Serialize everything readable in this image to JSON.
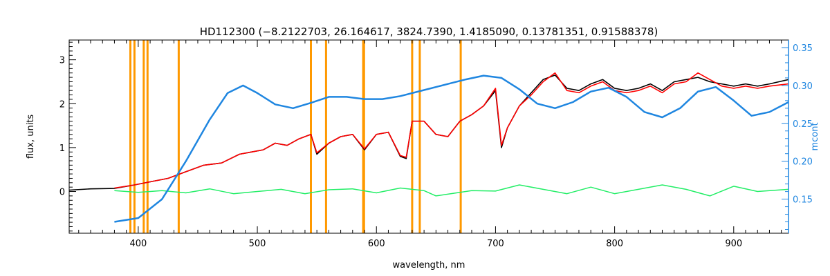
{
  "chart_data": {
    "type": "line",
    "title": "HD112300    (−8.2122703, 26.164617, 3824.7390, 1.4185090, 0.13781351, 0.91588378)",
    "xlabel": "wavelength, nm",
    "ylabel": "flux, units",
    "y2label": "mcont",
    "xlim": [
      342,
      946
    ],
    "ylim": [
      -0.95,
      3.45
    ],
    "y2lim": [
      0.105,
      0.36
    ],
    "x_ticks": [
      400,
      500,
      600,
      700,
      800,
      900
    ],
    "x_tick_labels": [
      "400",
      "500",
      "600",
      "700",
      "800",
      "900"
    ],
    "y_ticks": [
      0,
      1,
      2,
      3
    ],
    "y_tick_labels": [
      "0",
      "1",
      "2",
      "3"
    ],
    "y2_ticks": [
      0.15,
      0.2,
      0.25,
      0.3,
      0.35
    ],
    "y2_tick_labels": [
      "0.15",
      "0.20",
      "0.25",
      "0.30",
      "0.35"
    ],
    "grid": false,
    "colors": {
      "observed": "#000000",
      "model": "#ff0000",
      "residual": "#22ee66",
      "continuum": "#1f86e0",
      "lines": "#ff9900",
      "axes": "#000000",
      "right_axis": "#1f86e0"
    },
    "vertical_lines": [
      393.4,
      396.8,
      404.6,
      407.8,
      434.0,
      545.0,
      557.7,
      588.9,
      589.6,
      630.0,
      636.4,
      670.8
    ],
    "series": [
      {
        "role": "observed",
        "x": [
          342,
          360,
          380,
          395,
          410,
          425,
          440,
          455,
          470,
          485,
          495,
          505,
          515,
          525,
          535,
          545,
          550,
          560,
          570,
          580,
          590,
          600,
          610,
          620,
          625,
          630,
          640,
          650,
          660,
          670,
          680,
          690,
          700,
          705,
          710,
          720,
          730,
          740,
          750,
          760,
          770,
          780,
          790,
          800,
          810,
          820,
          830,
          840,
          850,
          860,
          870,
          880,
          890,
          900,
          910,
          920,
          930,
          946
        ],
        "y": [
          0.03,
          0.06,
          0.07,
          0.14,
          0.22,
          0.3,
          0.45,
          0.6,
          0.65,
          0.85,
          0.9,
          0.95,
          1.1,
          1.05,
          1.2,
          1.3,
          0.85,
          1.1,
          1.25,
          1.3,
          0.95,
          1.3,
          1.35,
          0.8,
          0.75,
          1.6,
          1.6,
          1.3,
          1.25,
          1.6,
          1.75,
          1.95,
          2.3,
          1.0,
          1.45,
          1.95,
          2.25,
          2.55,
          2.65,
          2.35,
          2.3,
          2.45,
          2.55,
          2.35,
          2.3,
          2.35,
          2.45,
          2.3,
          2.5,
          2.55,
          2.6,
          2.5,
          2.45,
          2.4,
          2.45,
          2.4,
          2.45,
          2.55
        ]
      },
      {
        "role": "model",
        "x": [
          380,
          395,
          410,
          425,
          440,
          455,
          470,
          485,
          495,
          505,
          515,
          525,
          535,
          545,
          550,
          560,
          570,
          580,
          590,
          600,
          610,
          620,
          625,
          630,
          640,
          650,
          660,
          670,
          680,
          690,
          700,
          705,
          710,
          720,
          730,
          740,
          750,
          760,
          770,
          780,
          790,
          800,
          810,
          820,
          830,
          840,
          850,
          860,
          870,
          880,
          890,
          900,
          910,
          920,
          930,
          946
        ],
        "y": [
          0.08,
          0.14,
          0.22,
          0.3,
          0.45,
          0.6,
          0.65,
          0.85,
          0.9,
          0.95,
          1.1,
          1.05,
          1.2,
          1.3,
          0.88,
          1.1,
          1.25,
          1.3,
          0.97,
          1.3,
          1.35,
          0.82,
          0.78,
          1.6,
          1.6,
          1.3,
          1.25,
          1.6,
          1.75,
          1.95,
          2.35,
          1.05,
          1.45,
          1.95,
          2.2,
          2.5,
          2.7,
          2.3,
          2.25,
          2.4,
          2.5,
          2.3,
          2.25,
          2.3,
          2.4,
          2.25,
          2.45,
          2.5,
          2.7,
          2.55,
          2.4,
          2.35,
          2.4,
          2.35,
          2.4,
          2.45
        ]
      },
      {
        "role": "residual",
        "x": [
          380,
          400,
          420,
          440,
          460,
          480,
          500,
          520,
          540,
          560,
          580,
          600,
          620,
          640,
          650,
          660,
          680,
          700,
          720,
          740,
          760,
          780,
          800,
          820,
          840,
          860,
          880,
          900,
          920,
          946
        ],
        "y": [
          0.02,
          -0.02,
          0.02,
          -0.03,
          0.06,
          -0.05,
          0.0,
          0.05,
          -0.05,
          0.04,
          0.06,
          -0.03,
          0.08,
          0.02,
          -0.1,
          -0.06,
          0.02,
          0.01,
          0.15,
          0.05,
          -0.05,
          0.1,
          -0.05,
          0.05,
          0.15,
          0.05,
          -0.1,
          0.12,
          0.0,
          0.05
        ]
      },
      {
        "role": "continuum",
        "axis": "right",
        "x": [
          380,
          400,
          420,
          440,
          460,
          475,
          488,
          500,
          515,
          530,
          545,
          560,
          575,
          590,
          605,
          620,
          640,
          660,
          675,
          690,
          705,
          720,
          735,
          750,
          765,
          780,
          795,
          810,
          825,
          840,
          855,
          870,
          885,
          900,
          915,
          930,
          946
        ],
        "y": [
          0.12,
          0.125,
          0.15,
          0.2,
          0.255,
          0.29,
          0.3,
          0.29,
          0.275,
          0.27,
          0.277,
          0.285,
          0.285,
          0.282,
          0.282,
          0.286,
          0.294,
          0.302,
          0.308,
          0.313,
          0.31,
          0.295,
          0.276,
          0.27,
          0.278,
          0.292,
          0.297,
          0.285,
          0.265,
          0.258,
          0.27,
          0.292,
          0.298,
          0.28,
          0.26,
          0.265,
          0.278
        ]
      }
    ]
  }
}
